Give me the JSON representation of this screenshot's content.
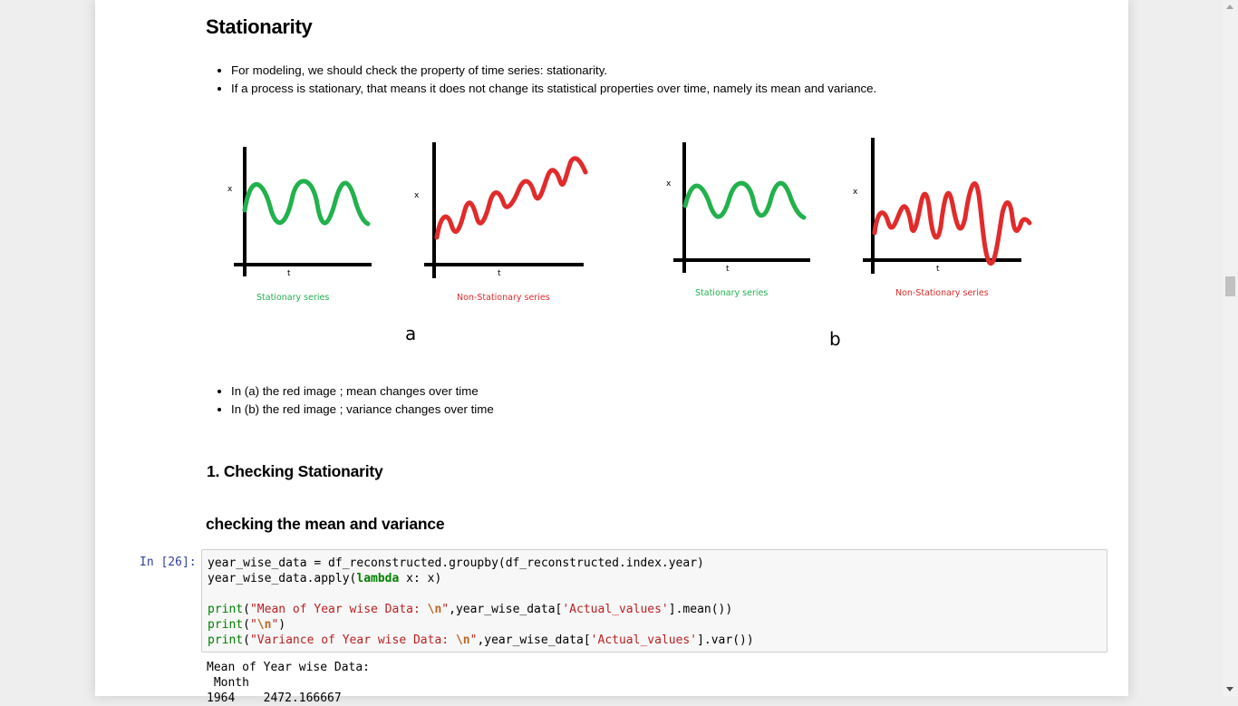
{
  "section": {
    "title": "Stationarity",
    "bullets": [
      "For modeling, we should check the property of time series: stationarity.",
      "If a process is stationary, that means it does not change its statistical properties over time, namely its mean and variance."
    ]
  },
  "figure": {
    "axis_x_label": "x",
    "axis_t_label": "t",
    "caption_stationary": "Stationary series",
    "caption_nonstationary": "Non-Stationary series",
    "panel_a": "a",
    "panel_b": "b",
    "colors": {
      "stationary": "#22b14c",
      "nonstationary": "#e12b2b"
    }
  },
  "notes": [
    "In (a) the red image ; mean changes over time",
    "In (b) the red image ; variance changes over time"
  ],
  "heading_checking": "1. Checking Stationarity",
  "heading_mean_var": "checking the mean and variance",
  "cell": {
    "prompt": "In [26]:",
    "line1": "year_wise_data = df_reconstructed.groupby(df_reconstructed.index.year)",
    "line2a": "year_wise_data.apply(",
    "line2kw": "lambda",
    "line2b": " x: x)",
    "print_kw": "print",
    "str1a": "\"Mean of Year wise Data: ",
    "esc": "\\n",
    "str_end": "\"",
    "line4tail": ",year_wise_data[",
    "col": "'Actual_values'",
    "mean_tail": "].mean())",
    "var_tail": "].var())",
    "str3a": "\"Variance of Year wise Data: ",
    "open": "(",
    "close": ")"
  },
  "output": {
    "line1": "Mean of Year wise Data:",
    "line2": " Month",
    "line3": "1964    2472.166667"
  }
}
